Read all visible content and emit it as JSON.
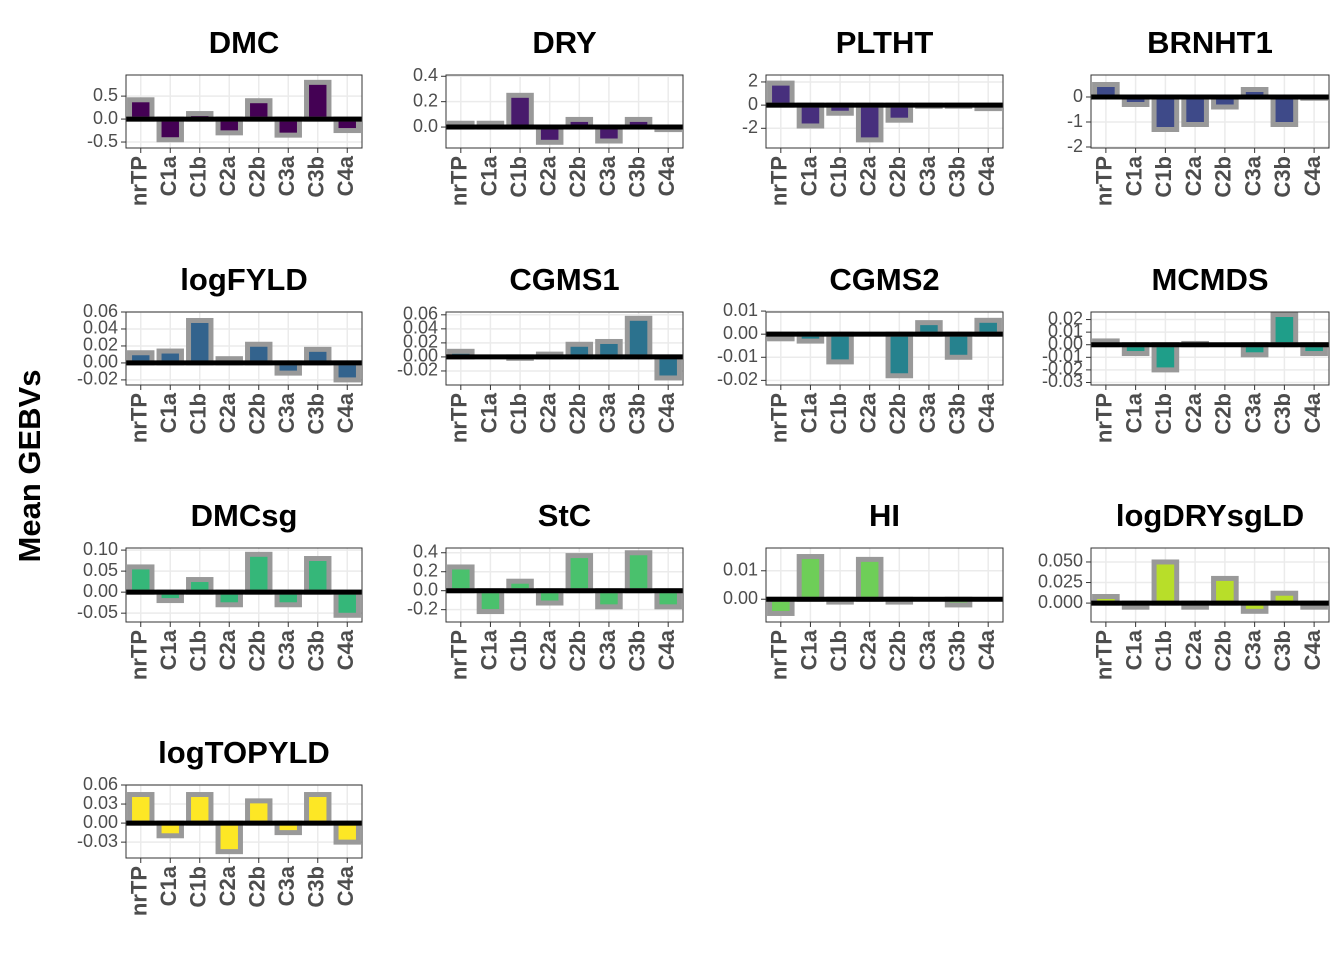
{
  "ylabel": "Mean GEBVs",
  "chart_data": [
    {
      "type": "bar",
      "title": "DMC",
      "color": "#440154",
      "categories": [
        "nrTP",
        "C1a",
        "C1b",
        "C2a",
        "C2b",
        "C3a",
        "C3b",
        "C4a"
      ],
      "values": [
        0.42,
        -0.45,
        0.12,
        -0.3,
        0.4,
        -0.35,
        0.8,
        -0.25
      ],
      "ylim": [
        -0.63,
        0.96
      ],
      "yticks": [
        -0.5,
        {
          "value": 0,
          "label": "0.0"
        },
        0.5
      ],
      "grid": true
    },
    {
      "type": "bar",
      "title": "DRY",
      "color": "#481a6c",
      "categories": [
        "nrTP",
        "C1a",
        "C1b",
        "C2a",
        "C2b",
        "C3a",
        "C3b",
        "C4a"
      ],
      "values": [
        0.03,
        0.03,
        0.25,
        -0.12,
        0.06,
        -0.11,
        0.06,
        -0.02
      ],
      "ylim": [
        -0.165,
        0.41
      ],
      "yticks": [
        {
          "value": 0,
          "label": "0.0"
        },
        0.2,
        0.4
      ],
      "grid": true
    },
    {
      "type": "bar",
      "title": "PLTHT",
      "color": "#472f7d",
      "categories": [
        "nrTP",
        "C1a",
        "C1b",
        "C2a",
        "C2b",
        "C3a",
        "C3b",
        "C4a"
      ],
      "values": [
        1.9,
        -1.8,
        -0.7,
        -3.0,
        -1.3,
        -0.1,
        -0.1,
        -0.3
      ],
      "ylim": [
        -3.7,
        2.6
      ],
      "yticks": [
        -2,
        0,
        2
      ],
      "grid": true
    },
    {
      "type": "bar",
      "title": "BRNHT1",
      "color": "#3e4a89",
      "categories": [
        "nrTP",
        "C1a",
        "C1b",
        "C2a",
        "C2b",
        "C3a",
        "C3b",
        "C4a"
      ],
      "values": [
        0.5,
        -0.3,
        -1.3,
        -1.1,
        -0.4,
        0.3,
        -1.1,
        -0.05
      ],
      "ylim": [
        -2.04,
        0.88
      ],
      "yticks": [
        -2,
        -1,
        0
      ],
      "grid": true
    },
    {
      "type": "bar",
      "title": "logFYLD",
      "color": "#33638d",
      "categories": [
        "nrTP",
        "C1a",
        "C1b",
        "C2a",
        "C2b",
        "C3a",
        "C3b",
        "C4a"
      ],
      "values": [
        0.012,
        0.014,
        0.05,
        0.005,
        0.022,
        -0.012,
        0.016,
        -0.02
      ],
      "ylim": [
        -0.026,
        0.06
      ],
      "yticks": [
        -0.02,
        {
          "value": 0,
          "label": "0.00"
        },
        0.02,
        0.04,
        0.06
      ],
      "grid": true
    },
    {
      "type": "bar",
      "title": "CGMS1",
      "color": "#2c728e",
      "categories": [
        "nrTP",
        "C1a",
        "C1b",
        "C2a",
        "C2b",
        "C3a",
        "C3b",
        "C4a"
      ],
      "values": [
        0.008,
        0,
        -0.002,
        0.004,
        0.018,
        0.022,
        0.055,
        -0.03
      ],
      "ylim": [
        -0.04,
        0.064
      ],
      "yticks": [
        -0.02,
        {
          "value": 0,
          "label": "0.00"
        },
        0.02,
        0.04,
        0.06
      ],
      "grid": true
    },
    {
      "type": "bar",
      "title": "CGMS2",
      "color": "#26828e",
      "categories": [
        "nrTP",
        "C1a",
        "C1b",
        "C2a",
        "C2b",
        "C3a",
        "C3b",
        "C4a"
      ],
      "values": [
        -0.002,
        -0.003,
        -0.012,
        0,
        -0.018,
        0.005,
        -0.01,
        0.006
      ],
      "ylim": [
        -0.022,
        0.0096
      ],
      "yticks": [
        -0.02,
        -0.01,
        {
          "value": 0,
          "label": "0.00"
        },
        0.01
      ],
      "grid": true
    },
    {
      "type": "bar",
      "title": "MCMDS",
      "color": "#1f9e89",
      "categories": [
        "nrTP",
        "C1a",
        "C1b",
        "C2a",
        "C2b",
        "C3a",
        "C3b",
        "C4a"
      ],
      "values": [
        0.003,
        -0.007,
        -0.02,
        0.001,
        0,
        -0.008,
        0.024,
        -0.007
      ],
      "ylim": [
        -0.032,
        0.026
      ],
      "yticks": [
        -0.03,
        -0.02,
        -0.01,
        {
          "value": 0,
          "label": "0.00"
        },
        0.01,
        0.02
      ],
      "grid": true
    },
    {
      "type": "bar",
      "title": "DMCsg",
      "color": "#35b779",
      "categories": [
        "nrTP",
        "C1a",
        "C1b",
        "C2a",
        "C2b",
        "C3a",
        "C3b",
        "C4a"
      ],
      "values": [
        0.06,
        -0.02,
        0.03,
        -0.03,
        0.09,
        -0.03,
        0.08,
        -0.055
      ],
      "ylim": [
        -0.071,
        0.105
      ],
      "yticks": [
        -0.05,
        {
          "value": 0,
          "label": "0.00"
        },
        0.05,
        {
          "value": 0.1,
          "label": "0.10"
        }
      ],
      "grid": true
    },
    {
      "type": "bar",
      "title": "StC",
      "color": "#4ac16d",
      "categories": [
        "nrTP",
        "C1a",
        "C1b",
        "C2a",
        "C2b",
        "C3a",
        "C3b",
        "C4a"
      ],
      "values": [
        0.25,
        -0.22,
        0.1,
        -0.13,
        0.37,
        -0.17,
        0.4,
        -0.17
      ],
      "ylim": [
        -0.33,
        0.45
      ],
      "yticks": [
        -0.2,
        {
          "value": 0,
          "label": "0.0"
        },
        0.2,
        0.4
      ],
      "grid": true
    },
    {
      "type": "bar",
      "title": "HI",
      "color": "#6ece58",
      "categories": [
        "nrTP",
        "C1a",
        "C1b",
        "C2a",
        "C2b",
        "C3a",
        "C3b",
        "C4a"
      ],
      "values": [
        -0.005,
        0.015,
        -0.001,
        0.014,
        -0.001,
        0,
        -0.002,
        0
      ],
      "ylim": [
        -0.008,
        0.018
      ],
      "yticks": [
        {
          "value": 0,
          "label": "0.00"
        },
        0.01
      ],
      "grid": true
    },
    {
      "type": "bar",
      "title": "logDRYsgLD",
      "color": "#b8de29",
      "categories": [
        "nrTP",
        "C1a",
        "C1b",
        "C2a",
        "C2b",
        "C3a",
        "C3b",
        "C4a"
      ],
      "values": [
        0.008,
        -0.005,
        0.05,
        -0.005,
        0.03,
        -0.01,
        0.012,
        -0.005
      ],
      "ylim": [
        -0.023,
        0.067
      ],
      "yticks": [
        {
          "value": 0,
          "label": "0.000"
        },
        0.025,
        {
          "value": 0.05,
          "label": "0.050"
        }
      ],
      "grid": true
    },
    {
      "type": "bar",
      "title": "logTOPYLD",
      "color": "#fde725",
      "categories": [
        "nrTP",
        "C1a",
        "C1b",
        "C2a",
        "C2b",
        "C3a",
        "C3b",
        "C4a"
      ],
      "values": [
        0.045,
        -0.02,
        0.045,
        -0.045,
        0.035,
        -0.015,
        0.045,
        -0.03
      ],
      "ylim": [
        -0.055,
        0.06
      ],
      "yticks": [
        -0.03,
        {
          "value": 0,
          "label": "0.00"
        },
        0.03,
        0.06
      ],
      "grid": true
    }
  ]
}
